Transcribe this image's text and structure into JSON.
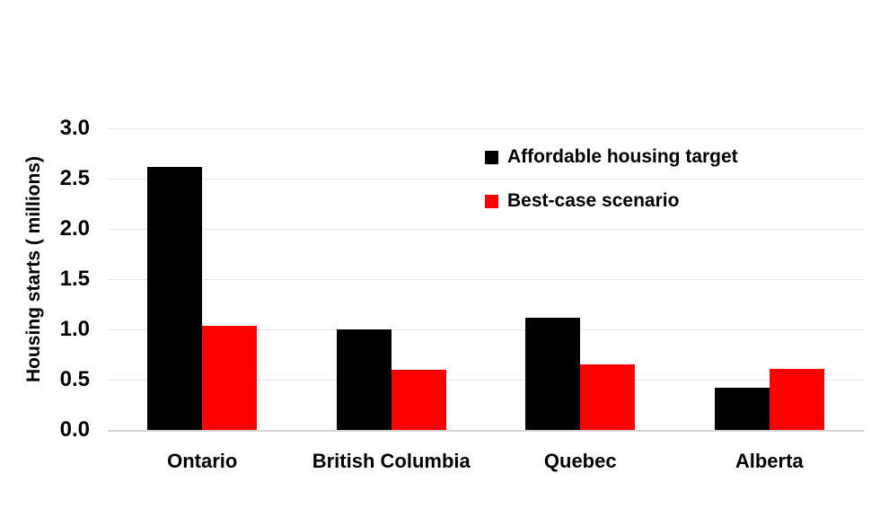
{
  "chart_data": {
    "type": "bar",
    "title": "",
    "xlabel": "",
    "ylabel": "Housing starts ( millions)",
    "categories": [
      "Ontario",
      "British Columbia",
      "Quebec",
      "Alberta"
    ],
    "series": [
      {
        "name": "Affordable housing target",
        "color": "#000000",
        "values": [
          2.62,
          1.0,
          1.12,
          0.42
        ]
      },
      {
        "name": "Best-case scenario",
        "color": "#ff0000",
        "values": [
          1.04,
          0.6,
          0.65,
          0.61
        ]
      }
    ],
    "ylim": [
      0,
      3.0
    ],
    "ytick_step": 0.5,
    "yticks": [
      "0.0",
      "0.5",
      "1.0",
      "1.5",
      "2.0",
      "2.5",
      "3.0"
    ],
    "grid": true,
    "gridline_color": "#e7e7e7",
    "baseline_color": "#d4d4d4",
    "legend_position": "top-right",
    "background_color": "#ffffff"
  }
}
